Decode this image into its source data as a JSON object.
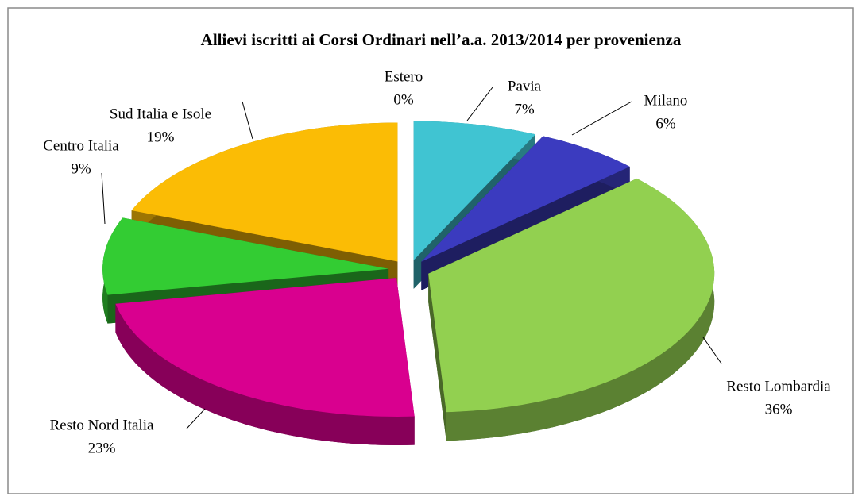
{
  "chart_data": {
    "type": "pie",
    "title": "Allievi iscritti ai Corsi Ordinari nell’a.a. 2013/2014 per provenienza",
    "categories": [
      "Estero",
      "Pavia",
      "Milano",
      "Resto Lombardia",
      "Resto Nord Italia",
      "Centro Italia",
      "Sud Italia e Isole"
    ],
    "values": [
      0,
      7,
      6,
      36,
      23,
      9,
      19
    ],
    "value_labels": [
      "0%",
      "7%",
      "6%",
      "36%",
      "23%",
      "9%",
      "19%"
    ],
    "colors": [
      "#8fb4e3",
      "#40c4d2",
      "#3b3bbf",
      "#92d050",
      "#d9008f",
      "#33cc33",
      "#fbbc05"
    ]
  }
}
